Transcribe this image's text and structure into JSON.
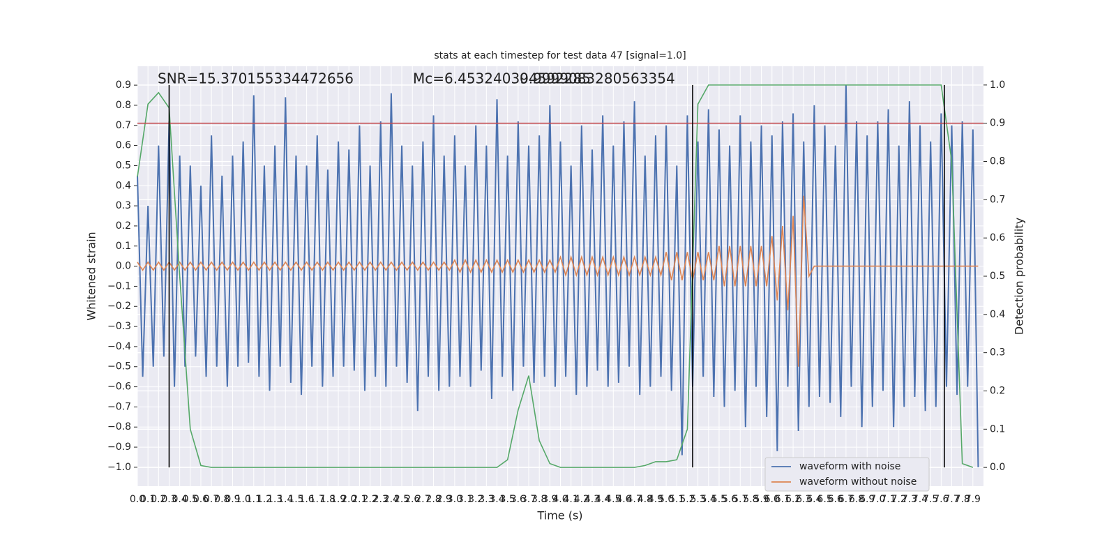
{
  "chart_data": {
    "type": "line",
    "title": "stats at each timestep for test data 47 [signal=1.0]",
    "xlabel": "Time (s)",
    "ylabel": "Whitened strain",
    "y2label": "Detection probability",
    "annotations": [
      "SNR=15.370155334472656",
      "Mc=6.453240394592285",
      "0.9999083280563354"
    ],
    "xlim": [
      0,
      8
    ],
    "ylim": [
      -1.094,
      0.994
    ],
    "y2lim": [
      -0.049,
      1.049
    ],
    "grid": true,
    "legend": "lower right",
    "xticks": [
      {
        "value": 0,
        "label": "0.0"
      },
      0.1,
      0.2,
      0.3,
      0.4,
      0.5,
      0.6,
      0.7,
      0.8,
      0.9,
      {
        "value": 1,
        "label": "1.0"
      },
      1.1,
      1.2,
      1.3,
      1.4,
      1.5,
      1.6,
      1.7,
      1.8,
      1.9,
      {
        "value": 2,
        "label": "2.0"
      },
      2.1,
      2.2,
      2.3,
      2.4,
      2.5,
      2.6,
      2.7,
      2.8,
      2.9,
      {
        "value": 3,
        "label": "3.0"
      },
      3.1,
      3.2,
      3.3,
      3.4,
      3.5,
      3.6,
      3.7,
      3.8,
      3.9,
      {
        "value": 4,
        "label": "4.0"
      },
      4.1,
      4.2,
      4.3,
      4.4,
      4.5,
      4.6,
      4.7,
      4.8,
      4.9,
      {
        "value": 5,
        "label": "5.0"
      },
      5.1,
      5.2,
      5.3,
      5.4,
      5.5,
      5.6,
      5.7,
      5.8,
      5.9,
      {
        "value": 6,
        "label": "6.0"
      },
      6.1,
      6.2,
      6.3,
      6.4,
      6.5,
      6.6,
      6.7,
      6.8,
      6.9,
      {
        "value": 7,
        "label": "7.0"
      },
      7.1,
      7.2,
      7.3,
      7.4,
      7.5,
      7.6,
      7.7,
      7.8,
      7.9
    ],
    "yticks": [
      {
        "value": -1,
        "label": "−1.0"
      },
      {
        "value": -0.9,
        "label": "−0.9"
      },
      {
        "value": -0.8,
        "label": "−0.8"
      },
      {
        "value": -0.7,
        "label": "−0.7"
      },
      {
        "value": -0.6,
        "label": "−0.6"
      },
      {
        "value": -0.5,
        "label": "−0.5"
      },
      {
        "value": -0.4,
        "label": "−0.4"
      },
      {
        "value": -0.3,
        "label": "−0.3"
      },
      {
        "value": -0.2,
        "label": "−0.2"
      },
      {
        "value": -0.1,
        "label": "−0.1"
      },
      {
        "value": 0,
        "label": "0.0"
      },
      0.1,
      0.2,
      0.3,
      0.4,
      0.5,
      0.6,
      0.7,
      0.8,
      0.9
    ],
    "y2ticks": [
      {
        "value": 0,
        "label": "0.0"
      },
      0.1,
      0.2,
      0.3,
      0.4,
      0.5,
      0.6,
      0.7,
      0.8,
      0.9,
      {
        "value": 1,
        "label": "1.0"
      }
    ],
    "x": [
      0,
      0.05,
      0.1,
      0.15,
      0.2,
      0.25,
      0.3,
      0.35,
      0.4,
      0.45,
      0.5,
      0.55,
      0.6,
      0.65,
      0.7,
      0.75,
      0.8,
      0.85,
      0.9,
      0.95,
      1,
      1.05,
      1.1,
      1.15,
      1.2,
      1.25,
      1.3,
      1.35,
      1.4,
      1.45,
      1.5,
      1.55,
      1.6,
      1.65,
      1.7,
      1.75,
      1.8,
      1.85,
      1.9,
      1.95,
      2,
      2.05,
      2.1,
      2.15,
      2.2,
      2.25,
      2.3,
      2.35,
      2.4,
      2.45,
      2.5,
      2.55,
      2.6,
      2.65,
      2.7,
      2.75,
      2.8,
      2.85,
      2.9,
      2.95,
      3,
      3.05,
      3.1,
      3.15,
      3.2,
      3.25,
      3.3,
      3.35,
      3.4,
      3.45,
      3.5,
      3.55,
      3.6,
      3.65,
      3.7,
      3.75,
      3.8,
      3.85,
      3.9,
      3.95,
      4,
      4.05,
      4.1,
      4.15,
      4.2,
      4.25,
      4.3,
      4.35,
      4.4,
      4.45,
      4.5,
      4.55,
      4.6,
      4.65,
      4.7,
      4.75,
      4.8,
      4.85,
      4.9,
      4.95,
      5,
      5.05,
      5.1,
      5.15,
      5.2,
      5.25,
      5.3,
      5.35,
      5.4,
      5.45,
      5.5,
      5.55,
      5.6,
      5.65,
      5.7,
      5.75,
      5.8,
      5.85,
      5.9,
      5.95,
      6,
      6.05,
      6.1,
      6.15,
      6.2,
      6.25,
      6.3,
      6.35,
      6.4,
      6.45,
      6.5,
      6.55,
      6.6,
      6.65,
      6.7,
      6.75,
      6.8,
      6.85,
      6.9,
      6.95,
      7,
      7.05,
      7.1,
      7.15,
      7.2,
      7.25,
      7.3,
      7.35,
      7.4,
      7.45,
      7.5,
      7.55,
      7.6,
      7.65,
      7.7,
      7.75,
      7.8,
      7.85,
      7.9,
      7.95
    ],
    "series": [
      {
        "name": "waveform with noise",
        "color": "#4c72b0",
        "values": [
          0.45,
          -0.55,
          0.3,
          -0.5,
          0.6,
          -0.45,
          0.72,
          -0.6,
          0.55,
          -0.5,
          0.5,
          -0.45,
          0.4,
          -0.55,
          0.65,
          -0.5,
          0.45,
          -0.6,
          0.55,
          -0.5,
          0.62,
          -0.48,
          0.85,
          -0.55,
          0.5,
          -0.62,
          0.6,
          -0.5,
          0.84,
          -0.58,
          0.55,
          -0.64,
          0.5,
          -0.5,
          0.65,
          -0.6,
          0.48,
          -0.55,
          0.62,
          -0.5,
          0.58,
          -0.52,
          0.7,
          -0.62,
          0.5,
          -0.55,
          0.72,
          -0.6,
          0.86,
          -0.5,
          0.6,
          -0.58,
          0.5,
          -0.72,
          0.62,
          -0.55,
          0.75,
          -0.62,
          0.55,
          -0.6,
          0.65,
          -0.55,
          0.5,
          -0.6,
          0.7,
          -0.52,
          0.6,
          -0.66,
          0.83,
          -0.55,
          0.55,
          -0.62,
          0.72,
          -0.5,
          0.6,
          -0.58,
          0.65,
          -0.55,
          0.8,
          -0.6,
          0.62,
          -0.55,
          0.5,
          -0.64,
          0.7,
          -0.6,
          0.58,
          -0.52,
          0.75,
          -0.6,
          0.6,
          -0.58,
          0.72,
          -0.5,
          0.82,
          -0.64,
          0.55,
          -0.6,
          0.65,
          -0.55,
          0.7,
          -0.62,
          0.5,
          -0.94,
          0.75,
          -0.6,
          0.62,
          -0.55,
          0.78,
          -0.65,
          0.68,
          -0.7,
          0.6,
          -0.62,
          0.75,
          -0.8,
          0.62,
          -0.6,
          0.7,
          -0.75,
          0.65,
          -0.92,
          0.72,
          -0.6,
          0.76,
          -0.82,
          0.62,
          -0.7,
          0.8,
          -0.65,
          0.7,
          -0.68,
          0.6,
          -0.75,
          0.9,
          -0.6,
          0.72,
          -0.8,
          0.65,
          -0.7,
          0.72,
          -0.62,
          0.78,
          -0.8,
          0.6,
          -0.7,
          0.82,
          -0.65,
          0.7,
          -0.72,
          0.62,
          -0.7,
          0.76,
          -0.6,
          0.7,
          -0.64,
          0.72,
          -0.6,
          0.68,
          -1.0
        ]
      },
      {
        "name": "waveform without noise",
        "color": "#dd8452",
        "values": [
          0.02,
          -0.02,
          0.02,
          -0.02,
          0.02,
          -0.02,
          0.02,
          -0.02,
          0.02,
          -0.02,
          0.02,
          -0.02,
          0.02,
          -0.02,
          0.02,
          -0.02,
          0.02,
          -0.02,
          0.02,
          -0.02,
          0.02,
          -0.02,
          0.02,
          -0.02,
          0.02,
          -0.02,
          0.02,
          -0.02,
          0.02,
          -0.02,
          0.02,
          -0.02,
          0.02,
          -0.02,
          0.02,
          -0.02,
          0.02,
          -0.02,
          0.02,
          -0.02,
          0.02,
          -0.02,
          0.02,
          -0.02,
          0.02,
          -0.02,
          0.02,
          -0.02,
          0.02,
          -0.02,
          0.02,
          -0.02,
          0.02,
          -0.02,
          0.02,
          -0.02,
          0.02,
          -0.02,
          0.02,
          -0.02,
          0.03,
          -0.03,
          0.03,
          -0.03,
          0.03,
          -0.03,
          0.03,
          -0.03,
          0.03,
          -0.03,
          0.03,
          -0.03,
          0.03,
          -0.03,
          0.03,
          -0.03,
          0.03,
          -0.03,
          0.03,
          -0.03,
          0.045,
          -0.045,
          0.045,
          -0.045,
          0.045,
          -0.045,
          0.045,
          -0.045,
          0.045,
          -0.045,
          0.045,
          -0.045,
          0.045,
          -0.045,
          0.045,
          -0.045,
          0.045,
          -0.045,
          0.045,
          -0.045,
          0.07,
          -0.07,
          0.07,
          -0.07,
          0.07,
          -0.07,
          0.07,
          -0.07,
          0.07,
          -0.07,
          0.1,
          -0.1,
          0.1,
          -0.1,
          0.1,
          -0.1,
          0.1,
          -0.1,
          0.1,
          -0.1,
          0.15,
          -0.17,
          0.2,
          -0.22,
          0.25,
          -0.5,
          0.35,
          -0.05,
          0,
          0,
          0,
          0,
          0,
          0,
          0,
          0,
          0,
          0,
          0,
          0,
          0,
          0,
          0,
          0,
          0,
          0,
          0,
          0,
          0,
          0,
          0,
          0,
          0,
          0,
          0,
          0,
          0,
          0,
          0,
          0
        ]
      },
      {
        "color": "#55a868",
        "axis": "y2",
        "x": [
          0,
          0.1,
          0.2,
          0.3,
          0.4,
          0.5,
          0.6,
          0.7,
          0.8,
          0.9,
          1,
          1.1,
          1.2,
          1.3,
          1.4,
          1.5,
          1.6,
          1.7,
          1.8,
          1.9,
          2,
          2.1,
          2.2,
          2.3,
          2.4,
          2.5,
          2.6,
          2.7,
          2.8,
          2.9,
          3,
          3.1,
          3.2,
          3.3,
          3.4,
          3.5,
          3.6,
          3.7,
          3.8,
          3.9,
          4,
          4.1,
          4.2,
          4.3,
          4.4,
          4.5,
          4.6,
          4.7,
          4.8,
          4.9,
          5,
          5.1,
          5.2,
          5.3,
          5.4,
          5.5,
          5.6,
          5.7,
          5.8,
          5.9,
          6,
          6.1,
          6.2,
          6.3,
          6.4,
          6.5,
          6.6,
          6.7,
          6.8,
          6.9,
          7,
          7.1,
          7.2,
          7.3,
          7.4,
          7.5,
          7.6,
          7.7,
          7.8,
          7.9
        ],
        "values": [
          0.76,
          0.95,
          0.98,
          0.94,
          0.5,
          0.1,
          0.005,
          0,
          0,
          0,
          0,
          0,
          0,
          0,
          0,
          0,
          0,
          0,
          0,
          0,
          0,
          0,
          0,
          0,
          0,
          0,
          0,
          0,
          0,
          0,
          0,
          0,
          0,
          0,
          0,
          0.02,
          0.15,
          0.24,
          0.07,
          0.01,
          0,
          0,
          0,
          0,
          0,
          0,
          0,
          0,
          0.005,
          0.015,
          0.015,
          0.02,
          0.1,
          0.95,
          1,
          1,
          1,
          1,
          1,
          1,
          1,
          1,
          1,
          1,
          1,
          1,
          1,
          1,
          1,
          1,
          1,
          1,
          1,
          1,
          1,
          1,
          1,
          0.8,
          0.01,
          0
        ]
      }
    ],
    "threshold": {
      "value": 0.9,
      "color": "#c44e52",
      "axis": "y2"
    },
    "vlines": {
      "x": [
        0.3,
        5.25,
        7.63
      ],
      "color": "#000000"
    }
  }
}
